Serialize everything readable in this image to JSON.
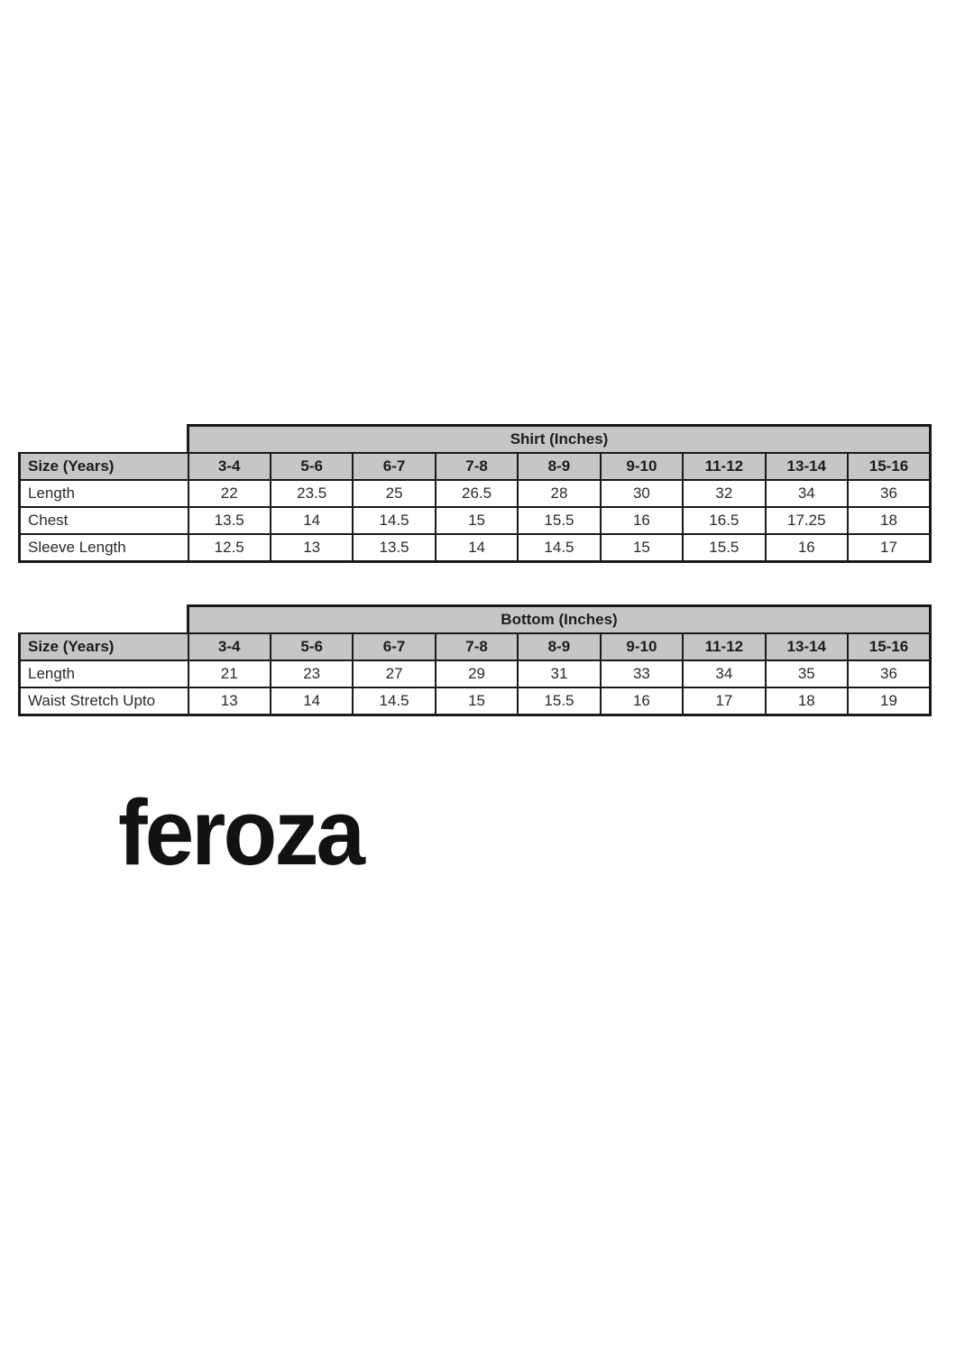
{
  "brand": {
    "name": "feroza"
  },
  "colors": {
    "header_gray": "#c6c6c6",
    "table_border": "#1a1a1a",
    "text": "#2a2a2a",
    "background": "#ffffff"
  },
  "tables": [
    {
      "id": "shirt",
      "band_title": "Shirt (Inches)",
      "corner_label": "Size (Years)",
      "size_columns": [
        "3-4",
        "5-6",
        "6-7",
        "7-8",
        "8-9",
        "9-10",
        "11-12",
        "13-14",
        "15-16"
      ],
      "rows": [
        {
          "label": "Length",
          "values": [
            "22",
            "23.5",
            "25",
            "26.5",
            "28",
            "30",
            "32",
            "34",
            "36"
          ]
        },
        {
          "label": "Chest",
          "values": [
            "13.5",
            "14",
            "14.5",
            "15",
            "15.5",
            "16",
            "16.5",
            "17.25",
            "18"
          ]
        },
        {
          "label": "Sleeve Length",
          "values": [
            "12.5",
            "13",
            "13.5",
            "14",
            "14.5",
            "15",
            "15.5",
            "16",
            "17"
          ]
        }
      ]
    },
    {
      "id": "bottom",
      "band_title": "Bottom (Inches)",
      "corner_label": "Size (Years)",
      "size_columns": [
        "3-4",
        "5-6",
        "6-7",
        "7-8",
        "8-9",
        "9-10",
        "11-12",
        "13-14",
        "15-16"
      ],
      "rows": [
        {
          "label": "Length",
          "values": [
            "21",
            "23",
            "27",
            "29",
            "31",
            "33",
            "34",
            "35",
            "36"
          ]
        },
        {
          "label": "Waist Stretch Upto",
          "values": [
            "13",
            "14",
            "14.5",
            "15",
            "15.5",
            "16",
            "17",
            "18",
            "19"
          ]
        }
      ]
    }
  ]
}
